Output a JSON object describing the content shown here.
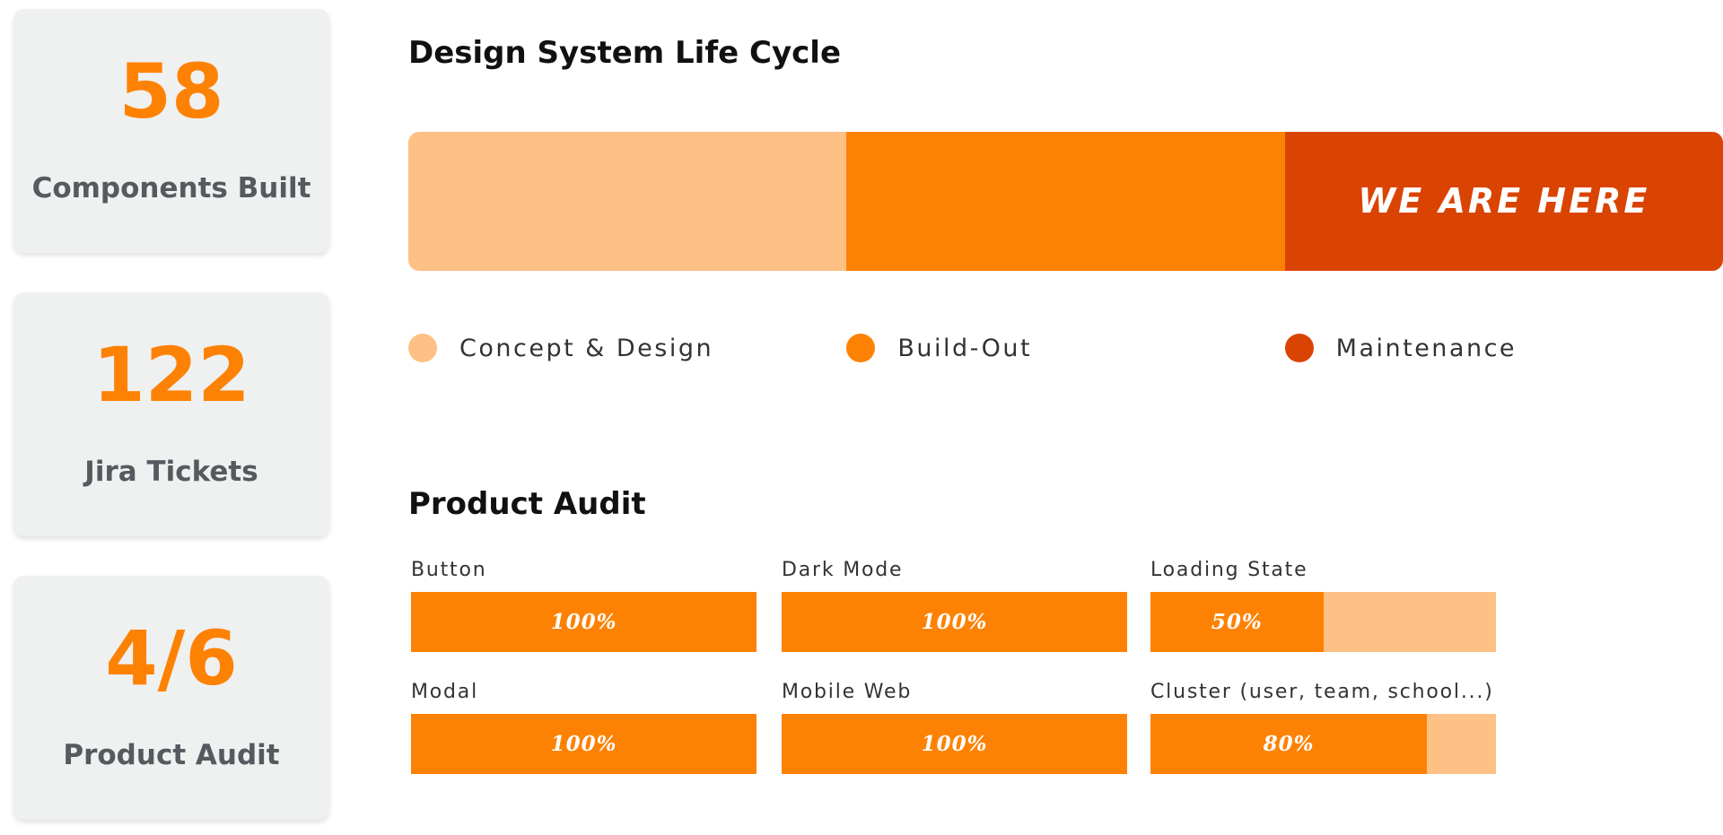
{
  "stat_cards": [
    {
      "value": "58",
      "label": "Components Built"
    },
    {
      "value": "122",
      "label": "Jira Tickets"
    },
    {
      "value": "4/6",
      "label": "Product Audit"
    }
  ],
  "lifecycle": {
    "title": "Design System Life Cycle",
    "stages": [
      {
        "name": "Concept & Design",
        "color": "#fdc185"
      },
      {
        "name": "Build-Out",
        "color": "#fd8204"
      },
      {
        "name": "Maintenance",
        "color": "#da4403",
        "annotation": "WE ARE HERE"
      }
    ]
  },
  "audit": {
    "title": "Product Audit",
    "xlim": [
      0,
      100
    ],
    "fill_color": "#fd8204",
    "track_color": "#fdc185",
    "items": [
      {
        "name": "Button",
        "value": 100,
        "value_label": "100%"
      },
      {
        "name": "Dark Mode",
        "value": 100,
        "value_label": "100%"
      },
      {
        "name": "Loading State",
        "value": 50,
        "value_label": "50%"
      },
      {
        "name": "Modal",
        "value": 100,
        "value_label": "100%"
      },
      {
        "name": "Mobile Web",
        "value": 100,
        "value_label": "100%"
      },
      {
        "name": "Cluster (user, team, school...)",
        "value": 80,
        "value_label": "80%"
      }
    ]
  }
}
